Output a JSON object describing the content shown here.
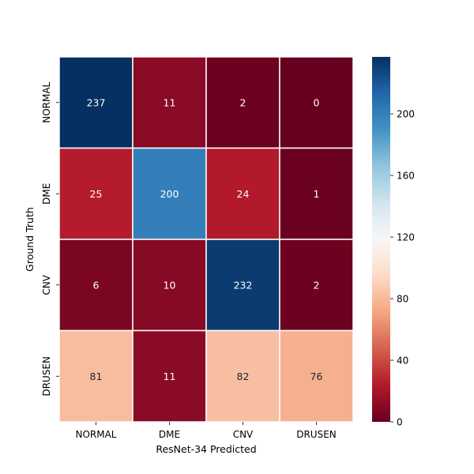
{
  "chart_data": {
    "type": "heatmap",
    "xlabel": "ResNet-34 Predicted",
    "ylabel": "Ground Truth",
    "x_categories": [
      "NORMAL",
      "DME",
      "CNV",
      "DRUSEN"
    ],
    "y_categories": [
      "NORMAL",
      "DME",
      "CNV",
      "DRUSEN"
    ],
    "values": [
      [
        237,
        11,
        2,
        0
      ],
      [
        25,
        200,
        24,
        1
      ],
      [
        6,
        10,
        232,
        2
      ],
      [
        81,
        11,
        82,
        76
      ]
    ],
    "colorbar": {
      "colormap": "RdBu",
      "vmin": 0,
      "vmax": 237,
      "ticks": [
        "0",
        "40",
        "80",
        "120",
        "160",
        "200"
      ]
    }
  }
}
